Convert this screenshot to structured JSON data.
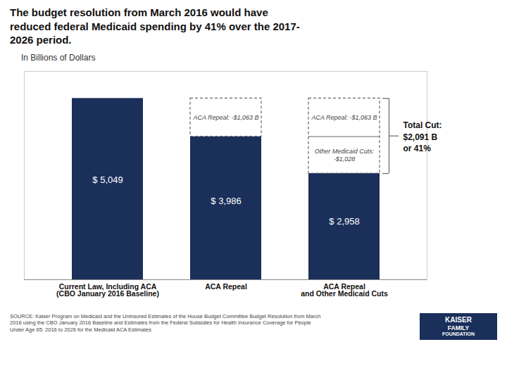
{
  "chart_data": {
    "type": "bar",
    "title": "The budget resolution from March 2016 would have\nreduced federal Medicaid spending by 41% over the 2017-\n2026 period.",
    "ylabel": "In Billions of Dollars",
    "categories": [
      "Current Law, Including ACA\n(CBO January 2016 Baseline)",
      "ACA Repeal",
      "ACA Repeal\nand Other Medicaid Cuts"
    ],
    "values": [
      5049,
      3986,
      2958
    ],
    "value_labels": [
      "$ 5,049",
      "$ 3,986",
      "$ 2,958"
    ],
    "data_labels": true,
    "color": "#1a2f5a",
    "ylim": [
      0,
      5800
    ],
    "tick_labels": "x",
    "grid": false,
    "annotations": {
      "aca_repeal_box": "ACA Repeal: -$1,063 B",
      "aca_repeal_split": "ACA Repeal: -$1,063 B",
      "other_cuts_split": "Other Medicaid Cuts:\n-$1,028",
      "total_cut": "Total Cut:\n$2,091 B\nor 41%"
    },
    "source": "SOURCE: Kaiser Program on Medicaid and the Uninsured Estimates of the House Budget Committee Budget Resolution from March\n2016 using the CBO January 2016 Baseline and Estimates from the Federal Subsidies for Health Insurance Coverage for People\nUnder Age 65: 2016 to 2026 for the Medicaid ACA Estimates",
    "logo": [
      "KAISER",
      "FAMILY",
      "FOUNDATION"
    ]
  }
}
